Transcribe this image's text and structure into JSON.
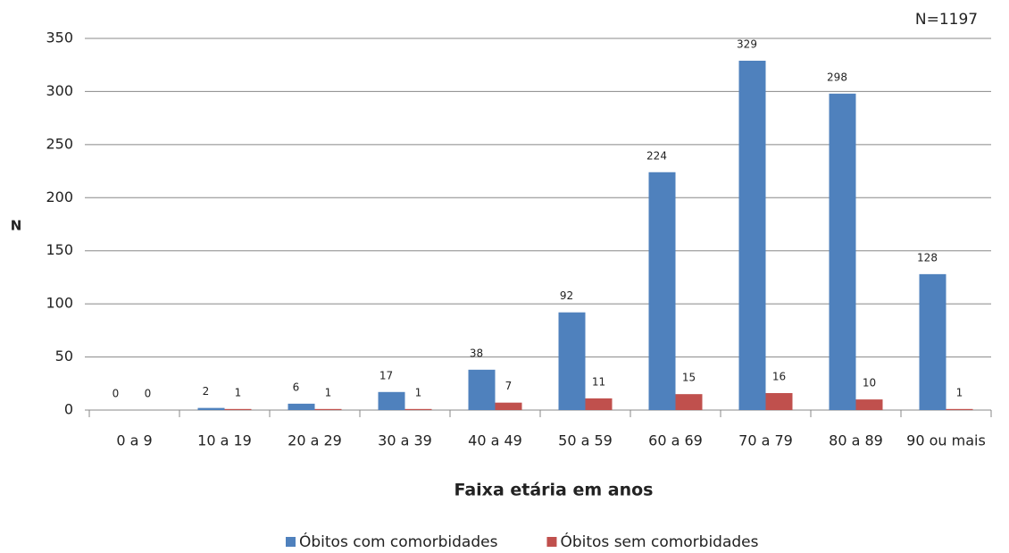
{
  "chart_data": {
    "type": "bar",
    "annotation": "N=1197",
    "y_label": "N",
    "x_label": "Faixa etária em anos",
    "categories": [
      "0 a 9",
      "10 a 19",
      "20 a 29",
      "30 a 39",
      "40 a 49",
      "50 a 59",
      "60 a 69",
      "70 a 79",
      "80 a 89",
      "90 ou mais"
    ],
    "series": [
      {
        "name": "Óbitos com comorbidades",
        "color": "#4f81bd",
        "values": [
          0,
          2,
          6,
          17,
          38,
          92,
          224,
          329,
          298,
          128
        ]
      },
      {
        "name": "Óbitos sem comorbidades",
        "color": "#c0504d",
        "values": [
          0,
          1,
          1,
          1,
          7,
          11,
          15,
          16,
          10,
          1
        ]
      }
    ],
    "ylim": [
      0,
      350
    ],
    "yticks": [
      0,
      50,
      100,
      150,
      200,
      250,
      300,
      350
    ],
    "grid": true,
    "legend": "bottom"
  }
}
